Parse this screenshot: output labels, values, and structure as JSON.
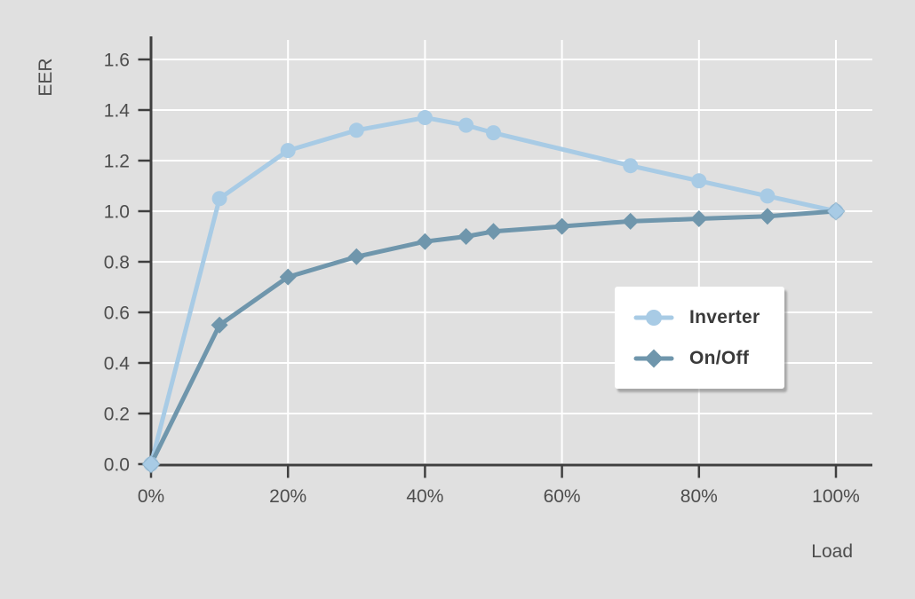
{
  "page": {
    "background": "#e0e0e0"
  },
  "colors": {
    "background": "#e0e0e0",
    "grid": "#ffffff",
    "axis": "#3f3f3f",
    "tick_label": "#4d4d4d",
    "inverter": "#a8cbe5",
    "onoff": "#6f96ac",
    "legend_bg": "#ffffff",
    "legend_text": "#3a3a3a"
  },
  "y_axis": {
    "label": "EER",
    "ticks": [
      "0.0",
      "0.2",
      "0.4",
      "0.6",
      "0.8",
      "1.0",
      "1.2",
      "1.4",
      "1.6"
    ]
  },
  "x_axis": {
    "label": "Load",
    "ticks": [
      "0%",
      "20%",
      "40%",
      "60%",
      "80%",
      "100%"
    ]
  },
  "legend": {
    "items": [
      {
        "label": "Inverter",
        "marker": "circle-icon"
      },
      {
        "label": "On/Off",
        "marker": "diamond-icon"
      }
    ]
  },
  "chart_data": {
    "type": "line",
    "title": "",
    "xlabel": "Load",
    "ylabel": "EER",
    "xlim": [
      0,
      100
    ],
    "ylim": [
      0,
      1.6
    ],
    "x_tick_values": [
      0,
      20,
      40,
      60,
      80,
      100
    ],
    "y_tick_values": [
      0,
      0.2,
      0.4,
      0.6,
      0.8,
      1.0,
      1.2,
      1.4,
      1.6
    ],
    "grid": true,
    "legend_position": "inside-right",
    "series": [
      {
        "name": "Inverter",
        "marker": "circle",
        "color": "#a8cbe5",
        "x": [
          0,
          10,
          20,
          30,
          40,
          46,
          50,
          70,
          80,
          90,
          100
        ],
        "y": [
          0.0,
          1.05,
          1.24,
          1.32,
          1.37,
          1.34,
          1.31,
          1.18,
          1.12,
          1.06,
          1.0
        ]
      },
      {
        "name": "On/Off",
        "marker": "diamond",
        "color": "#6f96ac",
        "x": [
          0,
          10,
          20,
          30,
          40,
          46,
          50,
          60,
          70,
          80,
          90,
          100
        ],
        "y": [
          0.0,
          0.55,
          0.74,
          0.82,
          0.88,
          0.9,
          0.92,
          0.94,
          0.96,
          0.97,
          0.98,
          1.0
        ]
      }
    ],
    "endpoint_overlay_markers": [
      {
        "x": 0,
        "y": 0.0
      },
      {
        "x": 100,
        "y": 1.0
      }
    ]
  }
}
